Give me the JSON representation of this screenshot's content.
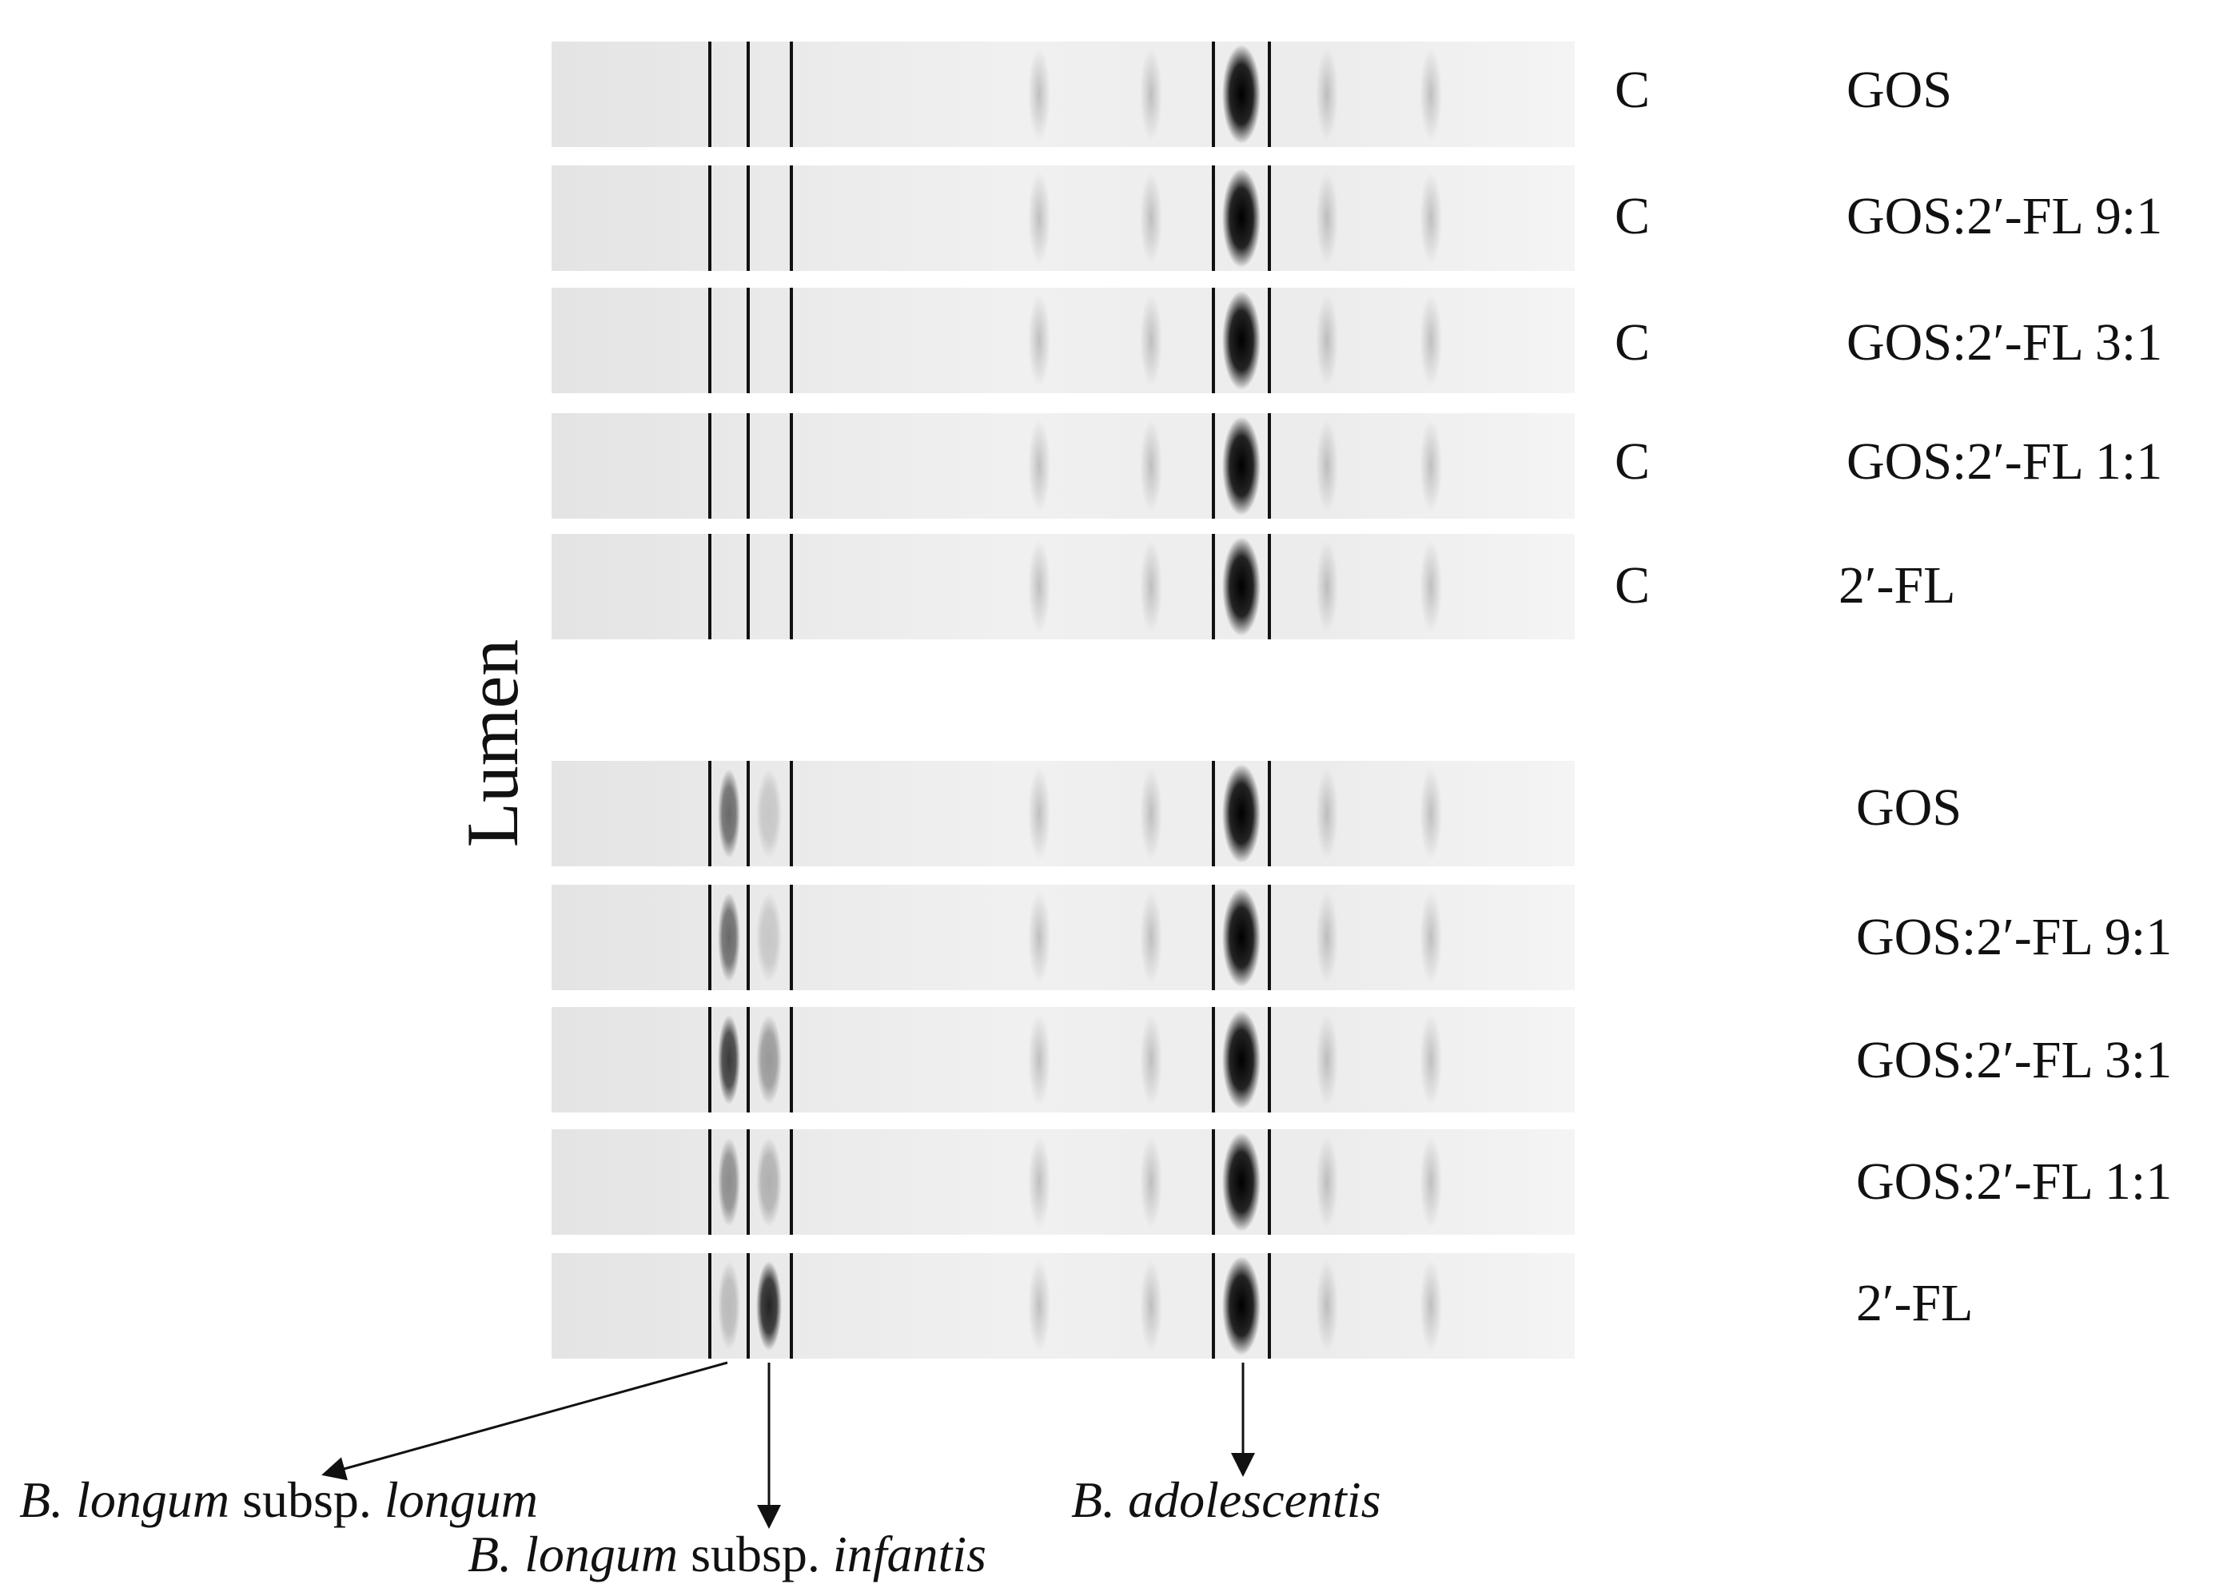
{
  "side_label": "Lumen",
  "panels": [
    {
      "lanes": [
        {
          "control": "C",
          "condition": "GOS"
        },
        {
          "control": "C",
          "condition": "GOS:2′-FL 9:1"
        },
        {
          "control": "C",
          "condition": "GOS:2′-FL 3:1"
        },
        {
          "control": "C",
          "condition": "GOS:2′-FL 1:1"
        },
        {
          "control": "C",
          "condition": "2′-FL"
        }
      ]
    },
    {
      "lanes": [
        {
          "control": "",
          "condition": "GOS"
        },
        {
          "control": "",
          "condition": "GOS:2′-FL 9:1"
        },
        {
          "control": "",
          "condition": "GOS:2′-FL 3:1"
        },
        {
          "control": "",
          "condition": "GOS:2′-FL 1:1"
        },
        {
          "control": "",
          "condition": "2′-FL"
        }
      ]
    }
  ],
  "species": {
    "longum": {
      "genus": "B. longum",
      "mid": " subsp. ",
      "subsp": "longum"
    },
    "infantis": {
      "genus": "B. longum",
      "mid": " subsp. ",
      "subsp": "infantis"
    },
    "adolescentis": {
      "genus": "B. adolescentis"
    }
  },
  "colors": {
    "background": "#ffffff",
    "lane": "#e9e9e9",
    "band": "#000000",
    "text": "#111111"
  }
}
